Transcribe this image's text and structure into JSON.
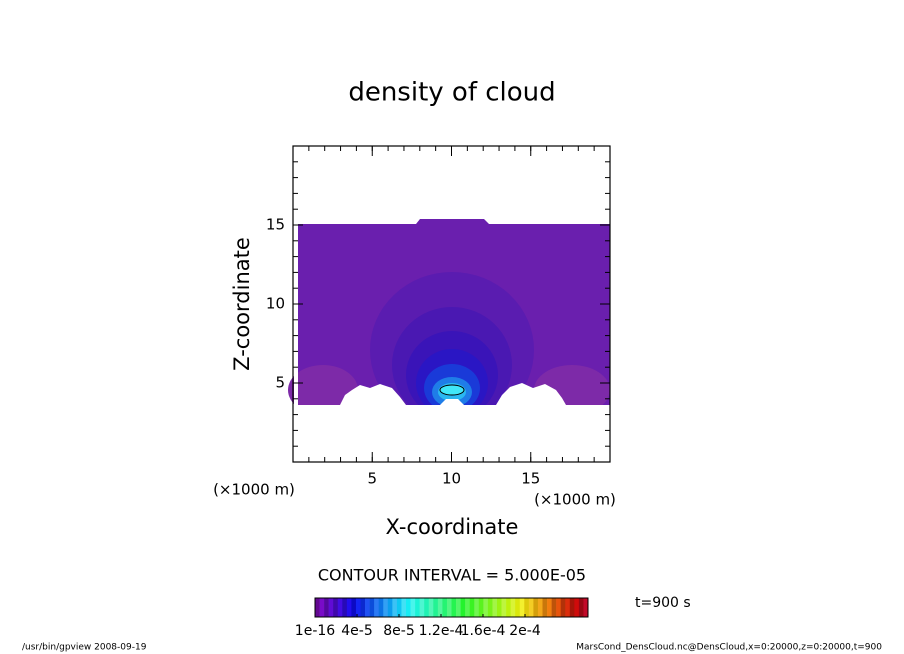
{
  "chart_data": {
    "type": "contour",
    "title": "density of cloud",
    "x_label": "X-coordinate",
    "y_label": "Z-coordinate",
    "x_unit": "(×1000 m)",
    "y_unit": "(×1000 m)",
    "xlim": [
      0,
      20
    ],
    "ylim": [
      0,
      20
    ],
    "xticks": [
      5,
      10,
      15
    ],
    "yticks": [
      5,
      10,
      15
    ],
    "contour_interval": "CONTOUR INTERVAL = 5.000E-05",
    "colorbar": {
      "lim": [
        0,
        0.00026
      ],
      "ticks": [
        {
          "value": 1e-16,
          "label": "1e-16"
        },
        {
          "value": 4e-05,
          "label": "4e-5"
        },
        {
          "value": 8e-05,
          "label": "8e-5"
        },
        {
          "value": 0.00012,
          "label": "1.2e-4"
        },
        {
          "value": 0.00016,
          "label": "1.6e-4"
        },
        {
          "value": 0.0002,
          "label": "2e-4"
        }
      ]
    },
    "time_label": "t=900 s",
    "footer_left": "/usr/bin/gpview   2008-09-19",
    "footer_right": "MarsCond_DensCloud.nc@DensCloud,x=0:20000,z=0:20000,t=900"
  }
}
